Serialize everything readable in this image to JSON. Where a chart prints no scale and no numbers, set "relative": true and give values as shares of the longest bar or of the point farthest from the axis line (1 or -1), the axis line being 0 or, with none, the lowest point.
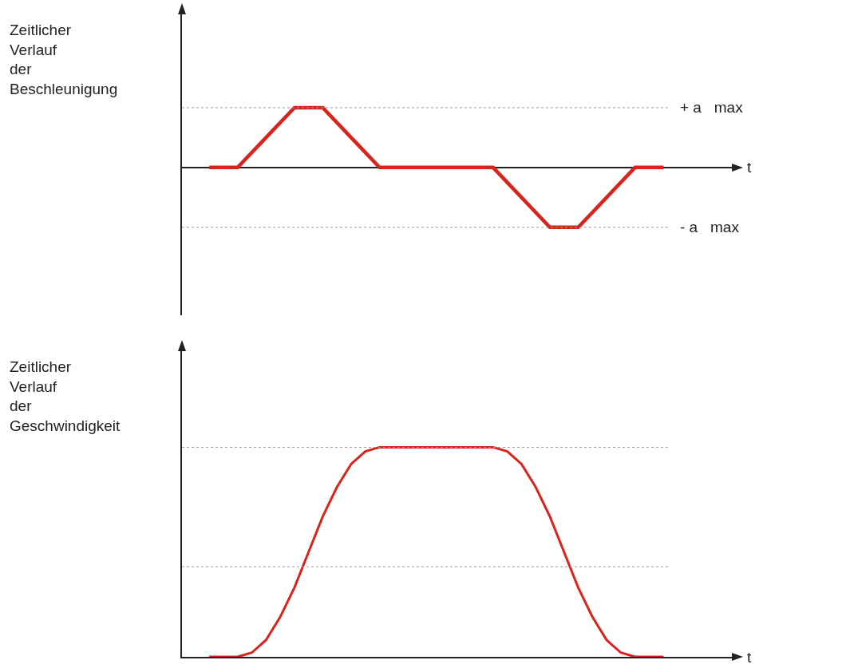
{
  "chart_data": [
    {
      "type": "line",
      "relative": true,
      "xlabel": "t",
      "ylabel": "Zeitlicher Verlauf der Beschleunigung",
      "categories": [
        null,
        null,
        null,
        null,
        null,
        null,
        null,
        null,
        null,
        null,
        null,
        null,
        null,
        null,
        null,
        null,
        null
      ],
      "series": [
        {
          "color": "#d9231d",
          "values": [
            0,
            0,
            0.5,
            1,
            1,
            0.5,
            0,
            0,
            0,
            0,
            0,
            -0.5,
            -1,
            -1,
            -0.5,
            0,
            0
          ]
        }
      ],
      "ref_lines": [
        {
          "axis": "y",
          "value": 1,
          "label": "+ a   max"
        },
        {
          "axis": "y",
          "value": -1,
          "label": "- a   max"
        }
      ]
    },
    {
      "type": "line",
      "relative": true,
      "xlabel": "t",
      "ylabel": "Zeitlicher Verlauf der Geschwindigkeit",
      "categories": [
        null,
        null,
        null,
        null,
        null,
        null,
        null,
        null,
        null,
        null,
        null,
        null,
        null,
        null,
        null,
        null,
        null,
        null,
        null,
        null,
        null,
        null,
        null,
        null,
        null,
        null,
        null,
        null,
        null,
        null,
        null,
        null,
        null
      ],
      "series": [
        {
          "color": "#d9231d",
          "values": [
            0,
            0,
            0,
            0.02,
            0.08,
            0.19,
            0.33,
            0.5,
            0.67,
            0.81,
            0.92,
            0.98,
            1,
            1,
            1,
            1,
            1,
            1,
            1,
            1,
            1,
            0.98,
            0.92,
            0.81,
            0.67,
            0.5,
            0.33,
            0.19,
            0.08,
            0.02,
            0,
            0,
            0
          ]
        }
      ],
      "ref_lines": [
        {
          "axis": "y",
          "value": 1,
          "label": null
        },
        {
          "axis": "y",
          "value": 0.43,
          "label": null
        }
      ]
    }
  ]
}
